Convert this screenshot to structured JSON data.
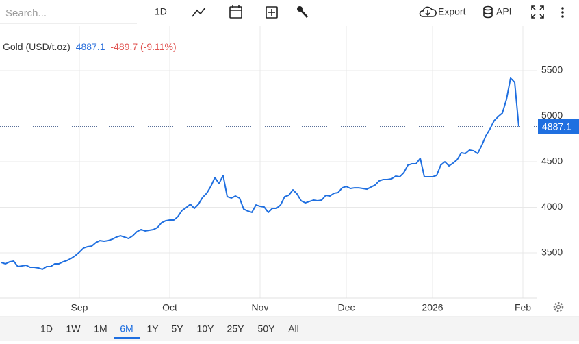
{
  "search_placeholder": "Search...",
  "toolbar": {
    "interval": "1D",
    "export": "Export",
    "api": "API"
  },
  "chart_data": {
    "type": "line",
    "title": "Gold (USD/t.oz)",
    "change": "-489.7 (-9.11%)",
    "color": "#1f6fe0",
    "categories": [
      null,
      null,
      null,
      null,
      null,
      null,
      null,
      null,
      null,
      null,
      null,
      null,
      null,
      null,
      null,
      null,
      null,
      null,
      null,
      "Sep",
      null,
      null,
      null,
      null,
      null,
      null,
      null,
      null,
      null,
      null,
      null,
      null,
      null,
      null,
      null,
      null,
      null,
      null,
      null,
      null,
      null,
      "Oct",
      null,
      null,
      null,
      null,
      null,
      null,
      null,
      null,
      null,
      null,
      null,
      null,
      null,
      null,
      null,
      null,
      null,
      null,
      null,
      null,
      null,
      "Nov",
      null,
      null,
      null,
      null,
      null,
      null,
      null,
      null,
      null,
      null,
      null,
      null,
      null,
      null,
      null,
      null,
      null,
      null,
      null,
      null,
      "Dec",
      null,
      null,
      null,
      null,
      null,
      null,
      null,
      null,
      null,
      null,
      null,
      null,
      null,
      null,
      null,
      null,
      null,
      null,
      null,
      null,
      "2026",
      null,
      null,
      null,
      null,
      null,
      null,
      null,
      null,
      null,
      null,
      null,
      null,
      null,
      null,
      null,
      null,
      null,
      null,
      null,
      null,
      null,
      "Feb"
    ],
    "values": [
      3395,
      3380,
      3402,
      3410,
      3350,
      3357,
      3365,
      3342,
      3342,
      3335,
      3320,
      3350,
      3350,
      3380,
      3380,
      3402,
      3417,
      3440,
      3470,
      3508,
      3553,
      3568,
      3575,
      3613,
      3635,
      3628,
      3635,
      3650,
      3673,
      3688,
      3673,
      3658,
      3688,
      3733,
      3756,
      3741,
      3748,
      3756,
      3778,
      3831,
      3853,
      3861,
      3861,
      3899,
      3966,
      3996,
      4034,
      3989,
      4034,
      4109,
      4154,
      4229,
      4327,
      4260,
      4350,
      4117,
      4102,
      4124,
      4102,
      3981,
      3959,
      3944,
      4026,
      4011,
      4004,
      3944,
      3989,
      3989,
      4026,
      4117,
      4132,
      4192,
      4147,
      4072,
      4049,
      4064,
      4079,
      4072,
      4079,
      4132,
      4124,
      4154,
      4162,
      4214,
      4229,
      4207,
      4214,
      4214,
      4207,
      4199,
      4222,
      4244,
      4290,
      4305,
      4305,
      4312,
      4342,
      4335,
      4380,
      4463,
      4478,
      4478,
      4538,
      4335,
      4335,
      4335,
      4350,
      4463,
      4500,
      4455,
      4485,
      4523,
      4598,
      4590,
      4628,
      4620,
      4590,
      4681,
      4786,
      4861,
      4951,
      4996,
      5034,
      5184,
      5418,
      5372,
      4887.1,
      null
    ],
    "ylim": [
      3004,
      5989
    ],
    "yticks": [
      3500,
      4000,
      4500,
      5000,
      5500
    ],
    "grid": true
  },
  "range_buttons": [
    "1D",
    "1W",
    "1M",
    "6M",
    "1Y",
    "5Y",
    "10Y",
    "25Y",
    "50Y",
    "All"
  ],
  "selected_range": "6M"
}
